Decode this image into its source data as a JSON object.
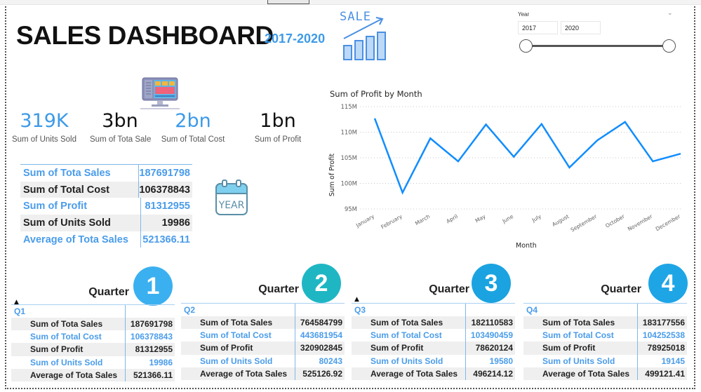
{
  "header": {
    "title": "SALES DASHBOARD",
    "subtitle": "2017-2020",
    "sale_icon_text": "SALE"
  },
  "slicer": {
    "label": "Year",
    "start": "2017",
    "end": "2020"
  },
  "kpis": [
    {
      "value": "319K",
      "label": "Sum of Units Sold",
      "color": "#3d9ae8"
    },
    {
      "value": "3bn",
      "label": "Sum of Tota Sales",
      "color": "#111111"
    },
    {
      "value": "2bn",
      "label": "Sum of Total Cost",
      "color": "#3d9ae8"
    },
    {
      "value": "1bn",
      "label": "Sum of Profit",
      "color": "#111111"
    }
  ],
  "summary_table": {
    "rows": [
      {
        "label": "Sum of Tota Sales",
        "value": "187691798"
      },
      {
        "label": "Sum of Total Cost",
        "value": "106378843"
      },
      {
        "label": "Sum of Profit",
        "value": "81312955"
      },
      {
        "label": "Sum of Units Sold",
        "value": "19986"
      },
      {
        "label": "Average of Tota Sales",
        "value": "521366.11"
      }
    ]
  },
  "year_icon_text": "YEAR",
  "chart_data": {
    "type": "line",
    "title": "Sum of Profit by Month",
    "xlabel": "Month",
    "ylabel": "Sum of Profit",
    "categories": [
      "January",
      "February",
      "March",
      "April",
      "May",
      "June",
      "July",
      "August",
      "September",
      "October",
      "November",
      "December"
    ],
    "series": [
      {
        "name": "Sum of Profit",
        "values": [
          112.7,
          98.2,
          108.8,
          104.3,
          111.5,
          105.2,
          111.6,
          103.1,
          108.4,
          112.0,
          104.3,
          105.8
        ],
        "unit": "M",
        "color": "#118dff"
      }
    ],
    "yticks": [
      "95M",
      "100M",
      "105M",
      "110M",
      "115M"
    ],
    "ylim": [
      95,
      115
    ],
    "grid": true,
    "legend": "none"
  },
  "quarters": [
    {
      "title": "Quarter",
      "badge": "1",
      "name": "Q1",
      "badge_color": "#3bb0f0",
      "show_sort": true,
      "rows": [
        {
          "label": "Sum of Tota Sales",
          "value": "187691798"
        },
        {
          "label": "Sum of Total Cost",
          "value": "106378843"
        },
        {
          "label": "Sum of Profit",
          "value": "81312955"
        },
        {
          "label": "Sum of Units Sold",
          "value": "19986"
        },
        {
          "label": "Average of Tota Sales",
          "value": "521366.11"
        }
      ]
    },
    {
      "title": "Quarter",
      "badge": "2",
      "name": "Q2",
      "badge_color": "#1fb6c4",
      "show_sort": false,
      "rows": [
        {
          "label": "Sum of Tota Sales",
          "value": "764584799"
        },
        {
          "label": "Sum of Total Cost",
          "value": "443681954"
        },
        {
          "label": "Sum of Profit",
          "value": "320902845"
        },
        {
          "label": "Sum of Units Sold",
          "value": "80243"
        },
        {
          "label": "Average of Tota Sales",
          "value": "525126.92"
        }
      ]
    },
    {
      "title": "Quarter",
      "badge": "3",
      "name": "Q3",
      "badge_color": "#1aa3e0",
      "show_sort": true,
      "rows": [
        {
          "label": "Sum of Tota Sales",
          "value": "182110583"
        },
        {
          "label": "Sum of Total Cost",
          "value": "103490459"
        },
        {
          "label": "Sum of Profit",
          "value": "78620124"
        },
        {
          "label": "Sum of Units Sold",
          "value": "19580"
        },
        {
          "label": "Average of Tota Sales",
          "value": "496214.12"
        }
      ]
    },
    {
      "title": "Quarter",
      "badge": "4",
      "name": "Q4",
      "badge_color": "#1ea5e6",
      "show_sort": false,
      "rows": [
        {
          "label": "Sum of Tota Sales",
          "value": "183177556"
        },
        {
          "label": "Sum of Total Cost",
          "value": "104252538"
        },
        {
          "label": "Sum of Profit",
          "value": "78925018"
        },
        {
          "label": "Sum of Units Sold",
          "value": "19145"
        },
        {
          "label": "Average of Tota Sales",
          "value": "499121.41"
        }
      ]
    }
  ],
  "colors": {
    "accent_blue": "#3d9ae8",
    "line_blue": "#118dff",
    "row_shade": "#efefef"
  }
}
